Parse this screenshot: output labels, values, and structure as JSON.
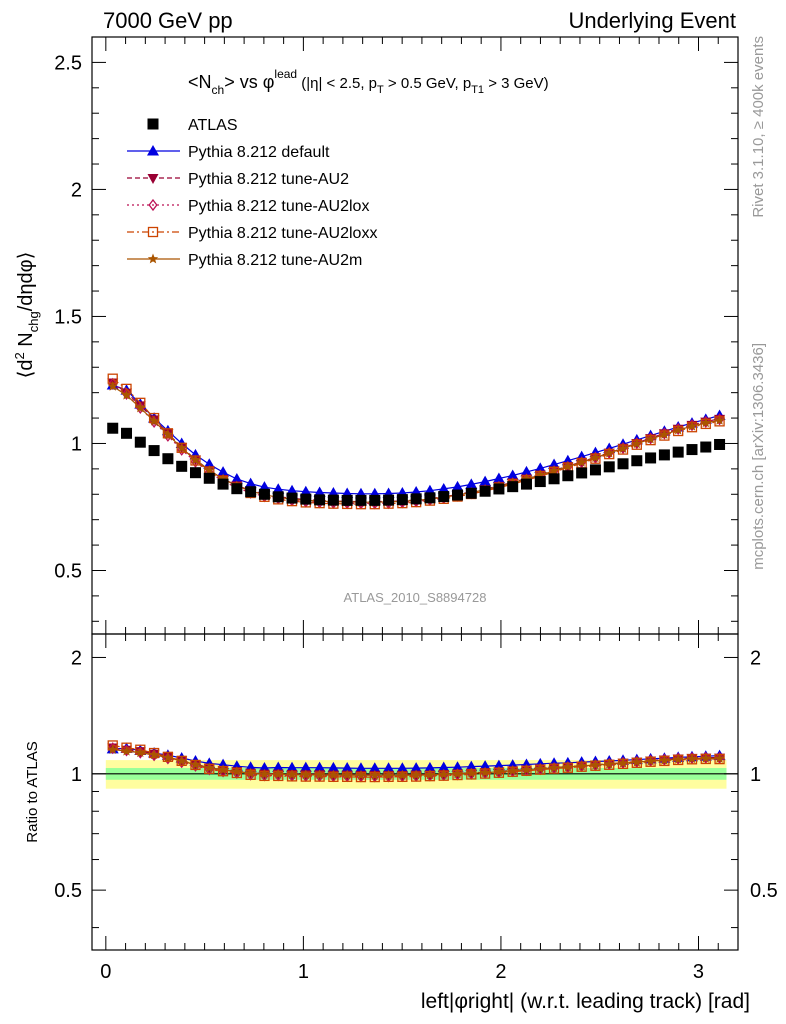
{
  "header": {
    "left": "7000 GeV pp",
    "right": "Underlying Event"
  },
  "side_labels": {
    "rivet": "Rivet 3.1.10, ≥ 400k events",
    "mcplots": "mcplots.cern.ch [arXiv:1306.3436]"
  },
  "chart_data": {
    "type": "scatter",
    "title": "<N_ch> vs φ^lead (|η| < 2.5, p_T > 0.5 GeV, p_T1 > 3 GeV)",
    "title_parts": {
      "n": "N",
      "ch": "ch",
      "vs": " vs φ",
      "lead": "lead",
      "cut_a": " (|η| < 2.5, p",
      "cut_b": "T",
      "cut_c": " > 0.5 GeV, p",
      "cut_d": "T1",
      "cut_e": " > 3 GeV)"
    },
    "analysis_id": "ATLAS_2010_S8894728",
    "xlabel": "left|φright| (w.r.t. leading track) [rad]",
    "ylabel": "⟨d² N_chg/dηdφ⟩",
    "ylabel_parts": {
      "open": "⟨d",
      "sq": "2",
      "n": " N",
      "chg": "chg",
      "rest": "/dηdφ⟩"
    },
    "ratio_ylabel": "Ratio to ATLAS",
    "xlim": [
      -0.07,
      3.2
    ],
    "ylim": [
      0.25,
      2.6
    ],
    "ratio_ylim": [
      0.35,
      2.3
    ],
    "x_ticks": [
      "0",
      "1",
      "2",
      "3"
    ],
    "y_ticks": [
      "0.5",
      "1",
      "1.5",
      "2",
      "2.5"
    ],
    "ratio_y_ticks": [
      "0.5",
      "1",
      "2"
    ],
    "legend_position": "top-left",
    "x": [
      0.0349,
      0.1047,
      0.1745,
      0.2443,
      0.3142,
      0.384,
      0.4538,
      0.5236,
      0.5934,
      0.6632,
      0.733,
      0.8029,
      0.8727,
      0.9425,
      1.0123,
      1.0821,
      1.1519,
      1.2217,
      1.2915,
      1.3614,
      1.4312,
      1.501,
      1.5708,
      1.6406,
      1.7104,
      1.7802,
      1.85,
      1.9199,
      1.9897,
      2.0595,
      2.1293,
      2.1991,
      2.2689,
      2.3387,
      2.4086,
      2.4784,
      2.5482,
      2.618,
      2.6878,
      2.7576,
      2.8274,
      2.8972,
      2.9671,
      3.0369,
      3.1067
    ],
    "series": [
      {
        "name": "ATLAS",
        "color": "#000000",
        "marker": "square",
        "values": [
          1.06,
          1.04,
          1.005,
          0.972,
          0.94,
          0.91,
          0.885,
          0.863,
          0.84,
          0.822,
          0.81,
          0.8,
          0.79,
          0.785,
          0.781,
          0.778,
          0.777,
          0.776,
          0.776,
          0.776,
          0.777,
          0.779,
          0.782,
          0.786,
          0.791,
          0.797,
          0.804,
          0.812,
          0.821,
          0.83,
          0.84,
          0.85,
          0.861,
          0.873,
          0.884,
          0.896,
          0.908,
          0.92,
          0.932,
          0.943,
          0.955,
          0.966,
          0.976,
          0.986,
          0.996
        ]
      },
      {
        "name": "Pythia 8.212 default",
        "color": "#0000e0",
        "marker": "triangle-up",
        "line": "solid",
        "values": [
          1.23,
          1.21,
          1.155,
          1.1,
          1.05,
          1.0,
          0.955,
          0.918,
          0.887,
          0.86,
          0.842,
          0.828,
          0.82,
          0.814,
          0.81,
          0.807,
          0.805,
          0.803,
          0.802,
          0.802,
          0.803,
          0.805,
          0.809,
          0.814,
          0.821,
          0.829,
          0.839,
          0.85,
          0.862,
          0.874,
          0.888,
          0.902,
          0.917,
          0.932,
          0.948,
          0.964,
          0.98,
          0.997,
          1.014,
          1.031,
          1.048,
          1.065,
          1.08,
          1.095,
          1.11
        ]
      },
      {
        "name": "Pythia 8.212 tune-AU2",
        "color": "#990033",
        "marker": "triangle-down",
        "line": "dashed",
        "values": [
          1.24,
          1.2,
          1.15,
          1.095,
          1.04,
          0.985,
          0.937,
          0.895,
          0.86,
          0.835,
          0.815,
          0.8,
          0.791,
          0.784,
          0.779,
          0.776,
          0.773,
          0.772,
          0.771,
          0.771,
          0.772,
          0.774,
          0.778,
          0.783,
          0.79,
          0.799,
          0.809,
          0.82,
          0.833,
          0.847,
          0.862,
          0.878,
          0.894,
          0.911,
          0.928,
          0.946,
          0.964,
          0.983,
          1.002,
          1.021,
          1.04,
          1.058,
          1.073,
          1.086,
          1.097
        ]
      },
      {
        "name": "Pythia 8.212 tune-AU2lox",
        "color": "#bb1155",
        "marker": "diamond-open",
        "line": "dotted",
        "values": [
          1.235,
          1.195,
          1.14,
          1.085,
          1.03,
          0.975,
          0.928,
          0.886,
          0.852,
          0.826,
          0.806,
          0.792,
          0.783,
          0.776,
          0.771,
          0.768,
          0.766,
          0.765,
          0.764,
          0.764,
          0.765,
          0.768,
          0.772,
          0.778,
          0.785,
          0.794,
          0.804,
          0.816,
          0.829,
          0.843,
          0.858,
          0.874,
          0.891,
          0.908,
          0.926,
          0.944,
          0.963,
          0.982,
          1.001,
          1.02,
          1.039,
          1.057,
          1.072,
          1.085,
          1.095
        ]
      },
      {
        "name": "Pythia 8.212 tune-AU2loxx",
        "color": "#cc4400",
        "marker": "square-open",
        "line": "dashdot",
        "values": [
          1.255,
          1.215,
          1.16,
          1.1,
          1.04,
          0.983,
          0.933,
          0.889,
          0.853,
          0.826,
          0.805,
          0.79,
          0.78,
          0.773,
          0.768,
          0.765,
          0.763,
          0.762,
          0.761,
          0.761,
          0.763,
          0.765,
          0.769,
          0.775,
          0.782,
          0.791,
          0.801,
          0.813,
          0.826,
          0.84,
          0.855,
          0.871,
          0.888,
          0.905,
          0.922,
          0.94,
          0.958,
          0.976,
          0.995,
          1.013,
          1.031,
          1.049,
          1.064,
          1.077,
          1.087
        ]
      },
      {
        "name": "Pythia 8.212 tune-AU2m",
        "color": "#aa5500",
        "marker": "star",
        "line": "solid",
        "values": [
          1.225,
          1.19,
          1.14,
          1.088,
          1.035,
          0.982,
          0.935,
          0.894,
          0.86,
          0.833,
          0.813,
          0.798,
          0.788,
          0.781,
          0.776,
          0.773,
          0.771,
          0.77,
          0.769,
          0.769,
          0.77,
          0.772,
          0.776,
          0.781,
          0.788,
          0.797,
          0.807,
          0.818,
          0.831,
          0.845,
          0.86,
          0.876,
          0.892,
          0.909,
          0.926,
          0.944,
          0.962,
          0.98,
          0.999,
          1.017,
          1.035,
          1.053,
          1.068,
          1.081,
          1.091
        ]
      }
    ],
    "ratio_bands": {
      "stat": 0.05,
      "syst": 0.035
    },
    "band_colors": {
      "outer": "#fffd9f",
      "inner": "#99ff99"
    }
  }
}
